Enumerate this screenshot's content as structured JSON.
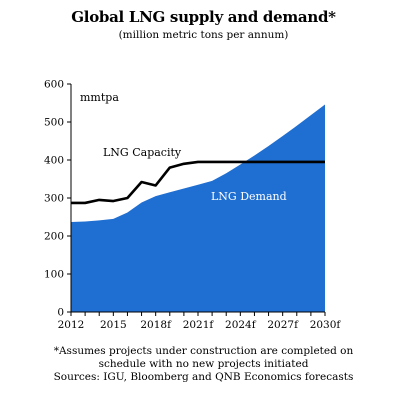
{
  "chart_data": {
    "type": "area",
    "title": "Global LNG supply and demand*",
    "subtitle": "(million metric tons per annum)",
    "unit_label": "mmtpa",
    "x": [
      "2012",
      "2013",
      "2014",
      "2015",
      "2016",
      "2017",
      "2018f",
      "2019f",
      "2020f",
      "2021f",
      "2022f",
      "2023f",
      "2024f",
      "2025f",
      "2026f",
      "2027f",
      "2028f",
      "2029f",
      "2030f"
    ],
    "x_tick_labels": [
      "2012",
      "2015",
      "2018f",
      "2021f",
      "2024f",
      "2027f",
      "2030f"
    ],
    "ylim": [
      0,
      600
    ],
    "y_ticks": [
      0,
      100,
      200,
      300,
      400,
      500,
      600
    ],
    "grid": false,
    "series": [
      {
        "name": "LNG Demand",
        "type": "area",
        "color": "#1F6ED1",
        "values": [
          237,
          238,
          241,
          245,
          262,
          288,
          305,
          315,
          325,
          335,
          345,
          365,
          388,
          412,
          437,
          463,
          490,
          518,
          546
        ]
      },
      {
        "name": "LNG Capacity",
        "type": "line",
        "color": "#000000",
        "values": [
          287,
          287,
          295,
          292,
          300,
          342,
          333,
          380,
          390,
          395,
          395,
          395,
          395,
          395,
          395,
          395,
          395,
          395,
          395
        ]
      }
    ],
    "annotations": {
      "capacity_label": "LNG Capacity",
      "demand_label": "LNG Demand"
    }
  },
  "footnotes": {
    "line1": "*Assumes projects under construction are completed on",
    "line2": "schedule with no new projects initiated",
    "line3": "Sources: IGU, Bloomberg and QNB Economics forecasts"
  }
}
